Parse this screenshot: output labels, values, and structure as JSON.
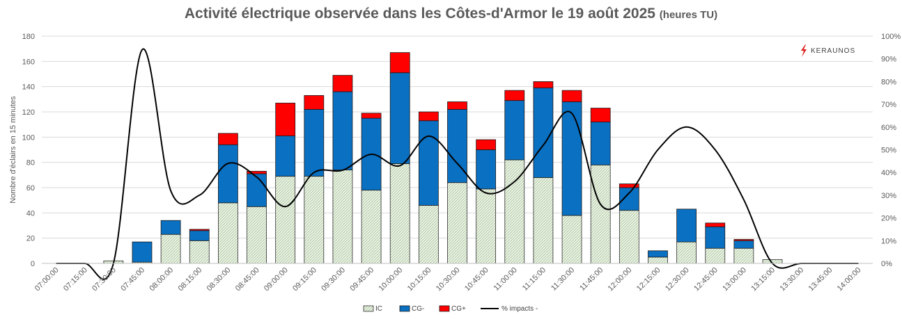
{
  "header": {
    "title": "Activité électrique observée dans les Côtes-d'Armor le 19 août 2025",
    "subtitle": "(heures TU)"
  },
  "logo": {
    "text": "KERAUNOS",
    "icon": "lightning-bolt-icon",
    "color": "#e02020"
  },
  "colors": {
    "ic_fill": "#eaf3e2",
    "ic_stroke": "#2b2b2b",
    "cg_neg": "#0a70c2",
    "cg_pos": "#ff0000",
    "pct_line": "#000000"
  },
  "chart_data": {
    "type": "bar",
    "stacked": true,
    "categories": [
      "07:00:00",
      "07:15:00",
      "07:30:00",
      "07:45:00",
      "08:00:00",
      "08:15:00",
      "08:30:00",
      "08:45:00",
      "09:00:00",
      "09:15:00",
      "09:30:00",
      "09:45:00",
      "10:00:00",
      "10:15:00",
      "10:30:00",
      "10:45:00",
      "11:00:00",
      "11:15:00",
      "11:30:00",
      "11:45:00",
      "12:00:00",
      "12:15:00",
      "12:30:00",
      "12:45:00",
      "13:00:00",
      "13:15:00",
      "13:30:00",
      "13:45:00",
      "14:00:00"
    ],
    "series": [
      {
        "name": "IC",
        "kind": "bar",
        "values": [
          0,
          0,
          2,
          1,
          23,
          18,
          48,
          45,
          69,
          69,
          74,
          58,
          79,
          46,
          64,
          59,
          82,
          68,
          38,
          78,
          42,
          5,
          17,
          12,
          12,
          3,
          0,
          0,
          0
        ]
      },
      {
        "name": "CG-",
        "kind": "bar",
        "values": [
          0,
          0,
          0,
          16,
          11,
          8,
          46,
          26,
          32,
          53,
          62,
          57,
          72,
          67,
          58,
          31,
          47,
          71,
          90,
          34,
          18,
          5,
          26,
          17,
          6,
          0,
          0,
          0,
          0
        ]
      },
      {
        "name": "CG+",
        "kind": "bar",
        "values": [
          0,
          0,
          0,
          0,
          0,
          1,
          9,
          2,
          26,
          11,
          13,
          4,
          16,
          7,
          6,
          8,
          8,
          5,
          9,
          11,
          3,
          0,
          0,
          3,
          1,
          0,
          0,
          0,
          0
        ]
      },
      {
        "name": "% impacts -",
        "kind": "line",
        "axis": "right",
        "values": [
          0,
          0,
          0,
          94,
          32,
          30,
          44,
          38,
          25,
          40,
          41,
          48,
          43,
          56,
          44,
          31,
          36,
          52,
          66,
          26,
          31,
          50,
          60,
          50,
          28,
          0,
          0,
          0,
          0
        ]
      }
    ],
    "ylabel": "Nombre d'éclairs en 15 minutes",
    "ylim": [
      0,
      180
    ],
    "yticks": [
      0,
      20,
      40,
      60,
      80,
      100,
      120,
      140,
      160,
      180
    ],
    "y2lim": [
      0,
      100
    ],
    "y2ticks": [
      "0%",
      "10%",
      "20%",
      "30%",
      "40%",
      "50%",
      "60%",
      "70%",
      "80%",
      "90%",
      "100%"
    ],
    "legend_position": "bottom",
    "grid": true
  }
}
